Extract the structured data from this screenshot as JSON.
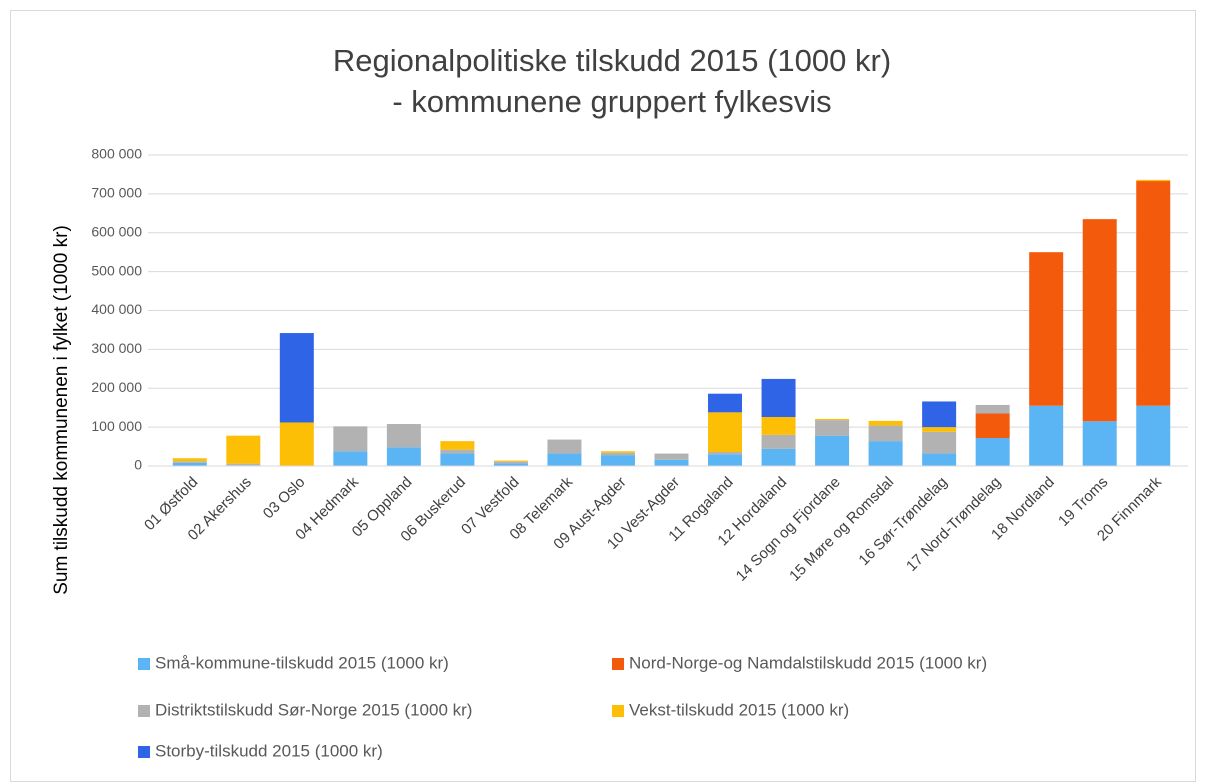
{
  "chart_data": {
    "type": "bar",
    "stacked": true,
    "title": "Regionalpolitiske tilskudd 2015 (1000 kr)",
    "subtitle": "- kommunene gruppert fylkesvis",
    "y_label": "Sum tilskudd kommunenen i fylket (1000 kr)",
    "categories": [
      "01 Østfold",
      "02 Akershus",
      "03 Oslo",
      "04 Hedmark",
      "05 Oppland",
      "06 Buskerud",
      "07 Vestfold",
      "08 Telemark",
      "09 Aust-Agder",
      "10 Vest-Agder",
      "11 Rogaland",
      "12 Hordaland",
      "14 Sogn og Fjordane",
      "15 Møre og Romsdal",
      "16 Sør-Trøndelag",
      "17 Nord-Trøndelag",
      "18 Nordland",
      "19 Troms",
      "20 Finnmark"
    ],
    "series": [
      {
        "name": "Små-kommune-tilskudd 2015 (1000 kr)",
        "color": "#5bb4f3",
        "values": [
          8000,
          2000,
          0,
          38000,
          48000,
          32000,
          7000,
          32000,
          28000,
          16000,
          30000,
          44000,
          78000,
          64000,
          32000,
          72000,
          155000,
          115000,
          155000
        ]
      },
      {
        "name": "Nord-Norge-og Namdalstilskudd 2015 (1000 kr)",
        "color": "#f45a0c",
        "values": [
          0,
          0,
          0,
          0,
          0,
          0,
          0,
          0,
          0,
          0,
          0,
          0,
          0,
          0,
          0,
          63000,
          395000,
          520000,
          578000
        ]
      },
      {
        "name": "Distriktstilskudd Sør-Norge 2015  (1000 kr)",
        "color": "#b2b2b2",
        "values": [
          4000,
          4000,
          0,
          64000,
          60000,
          10000,
          4000,
          36000,
          6000,
          16000,
          6000,
          36000,
          40000,
          40000,
          56000,
          22000,
          0,
          0,
          0
        ]
      },
      {
        "name": "Vekst-tilskudd 2015 (1000 kr)",
        "color": "#fdbf05",
        "values": [
          8000,
          72000,
          112000,
          0,
          0,
          22000,
          3000,
          0,
          4000,
          0,
          102000,
          46000,
          3000,
          12000,
          12000,
          0,
          0,
          0,
          3000
        ]
      },
      {
        "name": "Storby-tilskudd 2015 (1000 kr)",
        "color": "#2f64e6",
        "values": [
          0,
          0,
          230000,
          0,
          0,
          0,
          0,
          0,
          0,
          0,
          48000,
          98000,
          0,
          0,
          66000,
          0,
          0,
          0,
          0
        ]
      }
    ],
    "ylim": [
      0,
      800000
    ],
    "yticks": [
      0,
      {
        "value": 100000,
        "label": "100 000"
      },
      {
        "value": 200000,
        "label": "200 000"
      },
      {
        "value": 300000,
        "label": "300 000"
      },
      {
        "value": 400000,
        "label": "400 000"
      },
      {
        "value": 500000,
        "label": "500 000"
      },
      {
        "value": 600000,
        "label": "600 000"
      },
      {
        "value": 700000,
        "label": "700 000"
      },
      {
        "value": 800000,
        "label": "800 000"
      }
    ],
    "grid": true,
    "legend": "bottom"
  }
}
